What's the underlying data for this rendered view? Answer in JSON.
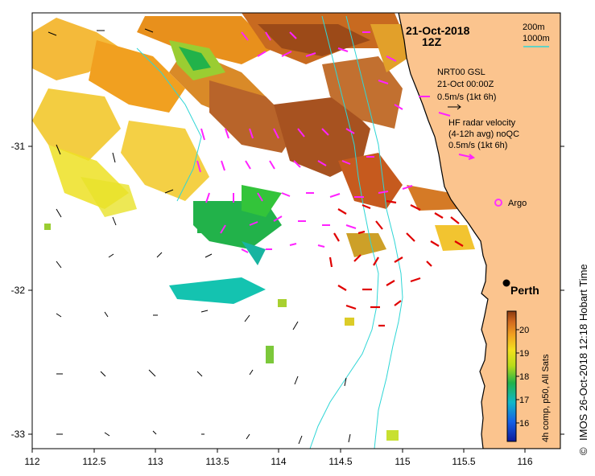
{
  "header": {
    "date": "21-Oct-2018",
    "time": "12Z"
  },
  "depth_contours": {
    "line1": "200m",
    "line2": "1000m",
    "color": "#2fd6d6"
  },
  "legend": {
    "nrt_line1": "NRT00 GSL",
    "nrt_line2": "21-Oct 00:00Z",
    "nrt_line3": "0.5m/s (1kt 6h)",
    "hf_line1": "HF radar velocity",
    "hf_line2": "(4-12h avg) noQC",
    "hf_line3": "0.5m/s (1kt 6h)",
    "argo_label": "Argo",
    "argo_color": "#ff33ff",
    "hf_arrow_color": "#ff22ff",
    "model_arrow_color": "#000000",
    "current_arrow_color": "#e00000"
  },
  "places": {
    "city": "Perth"
  },
  "colorbar": {
    "title": "4h comp, p50, All Sats",
    "ticks": [
      "16",
      "17",
      "18",
      "19",
      "20"
    ],
    "range": [
      15.5,
      20.6
    ]
  },
  "credit": "IMOS 26-Oct-2018 12:18 Hobart Time",
  "credit_symbol": "©",
  "axes": {
    "x_ticks": [
      "112",
      "112.5",
      "113",
      "113.5",
      "114",
      "114.5",
      "115",
      "115.5",
      "116"
    ],
    "y_ticks": [
      "-31",
      "-32",
      "-33"
    ],
    "xlim": [
      112.0,
      116.25
    ],
    "ylim": [
      -33.1,
      -30.1
    ]
  },
  "colors": {
    "land": "#fbc48e",
    "sst_high": "#b05418",
    "sst_mid": "#f1a020",
    "sst_low": "#e6e21e",
    "sst_green": "#22b24a",
    "sst_teal": "#14c3b0"
  }
}
